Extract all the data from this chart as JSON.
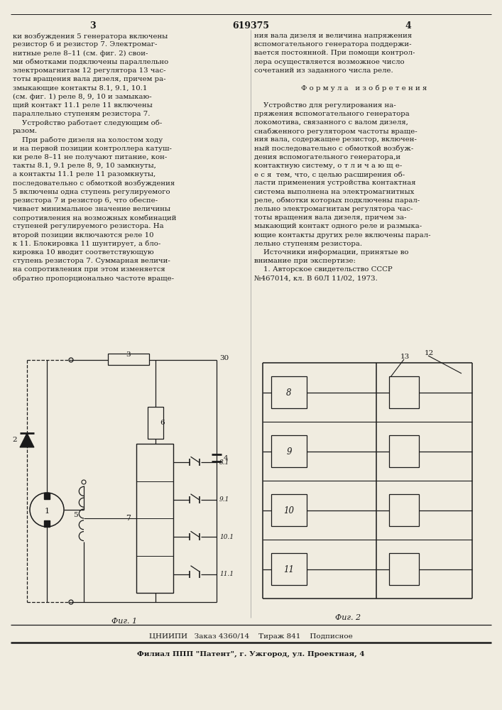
{
  "page_width": 7.07,
  "page_height": 10.0,
  "bg_color": "#f0ece0",
  "text_color": "#1a1a1a",
  "title_number": "619375",
  "col1_text": [
    "ки возбуждения 5 генератора включены",
    "резистор 6 и резистор 7. Электромаг-",
    "нитные реле 8–11 (см. фиг. 2) свои-",
    "ми обмотками подключены параллельно",
    "электромагнитам 12 регулятора 13 час-",
    "тоты вращения вала дизеля, причем ра-",
    "змыкающие контакты 8.1, 9.1, 10.1",
    "(см. фиг. 1) реле 8, 9, 10 и замыкаю-",
    "щий контакт 11.1 реле 11 включены",
    "параллельно ступеням резистора 7.",
    "    Устройство работает следующим об-",
    "разом.",
    "    При работе дизеля на холостом ходу",
    "и на первой позиции контроллера катуш-",
    "ки реле 8–11 не получают питание, кон-",
    "такты 8.1, 9.1 реле 8, 9, 10 замкнуты,",
    "а контакты 11.1 реле 11 разомкнуты,",
    "последовательно с обмоткой возбуждения",
    "5 включены одна ступень регулируемого",
    "резистора 7 и резистор 6, что обеспе-",
    "чивает минимальное значение величины",
    "сопротивления на возможных комбинаций",
    "ступеней регулируемого резистора. На",
    "второй позиции включаются реле 10",
    "к 11. Блокировка 11 шунтирует, а бло-",
    "кировка 10 вводит соответствующую",
    "ступень резистора 7. Суммарная величи-",
    "на сопротивления при этом изменяется",
    "обратно пропорционально частоте враще-"
  ],
  "col2_text": [
    "ния вала дизеля и величина напряжения",
    "вспомогательного генератора поддержи-",
    "вается постоянной. При помощи контрол-",
    "лера осуществляется возможное число",
    "сочетаний из заданного числа реле.",
    "",
    "Ф о р м у л а   и з о б р е т е н и я",
    "",
    "    Устройство для регулирования на-",
    "пряжения вспомогательного генератора",
    "локомотива, связанного с валом дизеля,",
    "снабженного регулятором частоты враще-",
    "ния вала, содержащее резистор, включен-",
    "ный последовательно с обмоткой возбуж-",
    "дения вспомогательного генератора,и",
    "контактную систему, о т л и ч а ю щ е-",
    "е с я  тем, что, с целью расширения об-",
    "ласти применения устройства контактная",
    "система выполнена на электромагнитных",
    "реле, обмотки которых подключены парал-",
    "лельно электромагнитам регулятора час-",
    "тоты вращения вала дизеля, причем за-",
    "мыкающий контакт одного реле и размыка-",
    "ющие контакты других реле включены парал-",
    "лельно ступеням резистора.",
    "    Источники информации, принятые во",
    "внимание при экспертизе:",
    "    1. Авторское свидетельство СССР",
    "№467014, кл. В 60Л 11/02, 1973."
  ],
  "bottom_line1": "ЦНИИПИ   Заказ 4360/14    Тираж 841    Подписное",
  "bottom_line2": "Филиал ППП \"Патент\", г. Ужгород, ул. Проектная, 4",
  "fig1_label": "Фиг. 1",
  "fig2_label": "Фиг. 2"
}
